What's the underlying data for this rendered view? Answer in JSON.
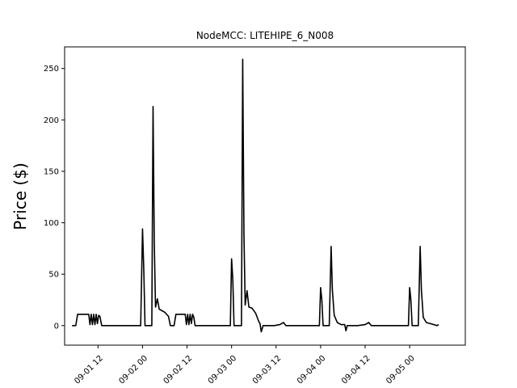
{
  "chart_data": {
    "type": "line",
    "title": "NodeMCC: LITEHIPE_6_N008",
    "xlabel": "",
    "ylabel": "Price ($)",
    "xlim": [
      "2023-09-01 03:00",
      "2023-09-05 15:00"
    ],
    "ylim": [
      -19,
      271
    ],
    "grid": false,
    "line_color": "#000000",
    "x_ticks": [
      {
        "value": "2023-09-01 12:00",
        "label": "09-01 12"
      },
      {
        "value": "2023-09-02 00:00",
        "label": "09-02 00"
      },
      {
        "value": "2023-09-02 12:00",
        "label": "09-02 12"
      },
      {
        "value": "2023-09-03 00:00",
        "label": "09-03 00"
      },
      {
        "value": "2023-09-03 12:00",
        "label": "09-03 12"
      },
      {
        "value": "2023-09-04 00:00",
        "label": "09-04 00"
      },
      {
        "value": "2023-09-04 12:00",
        "label": "09-04 12"
      },
      {
        "value": "2023-09-05 00:00",
        "label": "09-05 00"
      }
    ],
    "y_ticks": [
      {
        "value": 0,
        "label": "0"
      },
      {
        "value": 50,
        "label": "50"
      },
      {
        "value": 100,
        "label": "100"
      },
      {
        "value": 150,
        "label": "150"
      },
      {
        "value": 200,
        "label": "200"
      },
      {
        "value": 250,
        "label": "250"
      }
    ],
    "series": [
      {
        "points": [
          [
            "2023-09-01 05:00",
            0
          ],
          [
            "2023-09-01 06:00",
            0
          ],
          [
            "2023-09-01 06:30",
            11
          ],
          [
            "2023-09-01 09:30",
            11
          ],
          [
            "2023-09-01 09:50",
            1
          ],
          [
            "2023-09-01 10:10",
            11
          ],
          [
            "2023-09-01 10:30",
            1
          ],
          [
            "2023-09-01 10:50",
            11
          ],
          [
            "2023-09-01 11:10",
            1
          ],
          [
            "2023-09-01 11:30",
            11
          ],
          [
            "2023-09-01 11:50",
            2
          ],
          [
            "2023-09-01 12:10",
            10
          ],
          [
            "2023-09-01 12:30",
            9
          ],
          [
            "2023-09-01 13:00",
            0
          ],
          [
            "2023-09-01 23:30",
            0
          ],
          [
            "2023-09-02 00:00",
            94
          ],
          [
            "2023-09-02 00:20",
            55
          ],
          [
            "2023-09-02 00:40",
            0
          ],
          [
            "2023-09-02 02:30",
            0
          ],
          [
            "2023-09-02 02:50",
            213
          ],
          [
            "2023-09-02 03:10",
            80
          ],
          [
            "2023-09-02 03:30",
            18
          ],
          [
            "2023-09-02 04:00",
            26
          ],
          [
            "2023-09-02 04:30",
            16
          ],
          [
            "2023-09-02 05:00",
            15
          ],
          [
            "2023-09-02 06:00",
            13
          ],
          [
            "2023-09-02 07:00",
            9
          ],
          [
            "2023-09-02 07:30",
            0
          ],
          [
            "2023-09-02 08:30",
            0
          ],
          [
            "2023-09-02 09:00",
            11
          ],
          [
            "2023-09-02 11:30",
            11
          ],
          [
            "2023-09-02 11:50",
            1
          ],
          [
            "2023-09-02 12:10",
            11
          ],
          [
            "2023-09-02 12:30",
            1
          ],
          [
            "2023-09-02 12:50",
            11
          ],
          [
            "2023-09-02 13:10",
            2
          ],
          [
            "2023-09-02 13:30",
            11
          ],
          [
            "2023-09-02 13:50",
            8
          ],
          [
            "2023-09-02 14:10",
            0
          ],
          [
            "2023-09-02 23:40",
            0
          ],
          [
            "2023-09-03 00:00",
            65
          ],
          [
            "2023-09-03 00:20",
            45
          ],
          [
            "2023-09-03 00:40",
            0
          ],
          [
            "2023-09-03 02:40",
            0
          ],
          [
            "2023-09-03 03:00",
            259
          ],
          [
            "2023-09-03 03:20",
            90
          ],
          [
            "2023-09-03 03:40",
            20
          ],
          [
            "2023-09-03 04:10",
            34
          ],
          [
            "2023-09-03 04:40",
            18
          ],
          [
            "2023-09-03 05:30",
            17
          ],
          [
            "2023-09-03 06:30",
            12
          ],
          [
            "2023-09-03 07:20",
            4
          ],
          [
            "2023-09-03 07:40",
            2
          ],
          [
            "2023-09-03 08:00",
            -6
          ],
          [
            "2023-09-03 08:30",
            0
          ],
          [
            "2023-09-03 09:30",
            0
          ],
          [
            "2023-09-03 11:30",
            0
          ],
          [
            "2023-09-03 13:00",
            1
          ],
          [
            "2023-09-03 14:00",
            3
          ],
          [
            "2023-09-03 14:40",
            0
          ],
          [
            "2023-09-03 23:40",
            0
          ],
          [
            "2023-09-04 00:00",
            37
          ],
          [
            "2023-09-04 00:20",
            25
          ],
          [
            "2023-09-04 00:40",
            0
          ],
          [
            "2023-09-04 02:20",
            0
          ],
          [
            "2023-09-04 02:50",
            77
          ],
          [
            "2023-09-04 03:10",
            35
          ],
          [
            "2023-09-04 03:40",
            10
          ],
          [
            "2023-09-04 04:30",
            3
          ],
          [
            "2023-09-04 05:30",
            1
          ],
          [
            "2023-09-04 06:30",
            1
          ],
          [
            "2023-09-04 06:50",
            -5
          ],
          [
            "2023-09-04 07:10",
            0
          ],
          [
            "2023-09-04 10:00",
            0
          ],
          [
            "2023-09-04 12:00",
            1
          ],
          [
            "2023-09-04 13:00",
            3
          ],
          [
            "2023-09-04 13:40",
            0
          ],
          [
            "2023-09-04 23:40",
            0
          ],
          [
            "2023-09-05 00:00",
            37
          ],
          [
            "2023-09-05 00:20",
            25
          ],
          [
            "2023-09-05 00:40",
            0
          ],
          [
            "2023-09-05 02:20",
            0
          ],
          [
            "2023-09-05 02:50",
            77
          ],
          [
            "2023-09-05 03:10",
            35
          ],
          [
            "2023-09-05 03:40",
            8
          ],
          [
            "2023-09-05 04:30",
            3
          ],
          [
            "2023-09-05 05:30",
            2
          ],
          [
            "2023-09-05 06:30",
            1
          ],
          [
            "2023-09-05 07:20",
            0
          ],
          [
            "2023-09-05 07:50",
            1
          ]
        ]
      }
    ]
  }
}
